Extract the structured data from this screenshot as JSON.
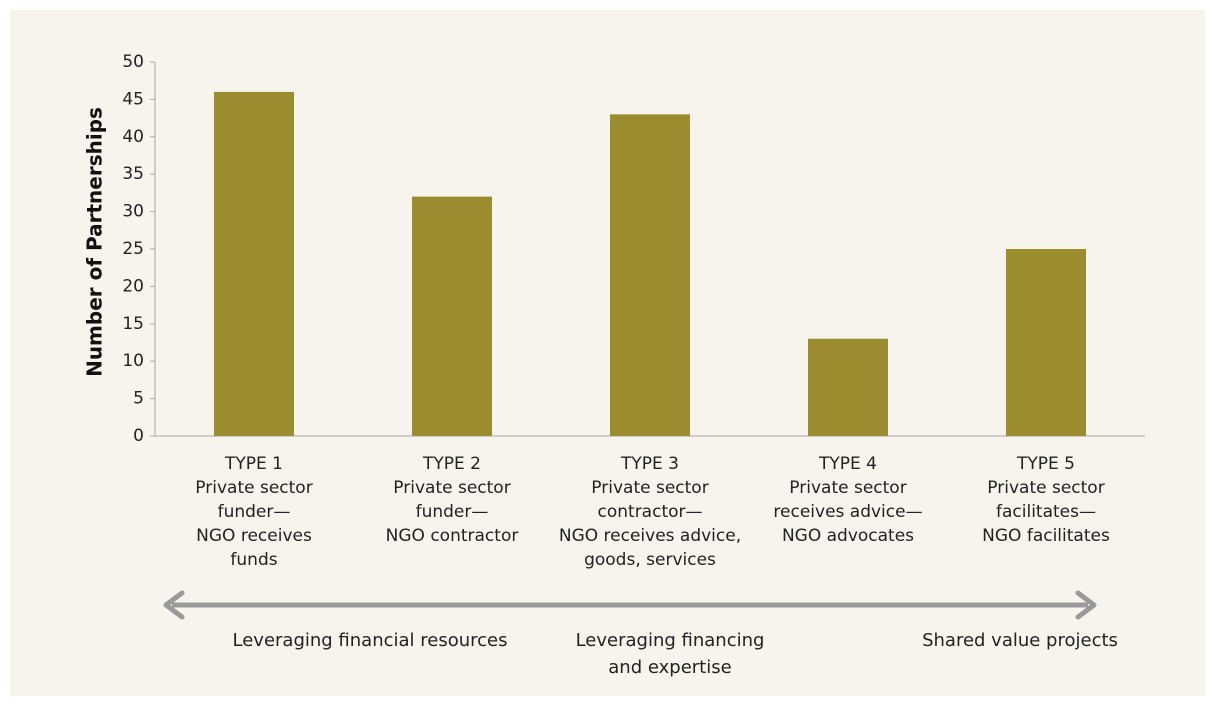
{
  "chart_data": {
    "type": "bar",
    "ylabel": "Number of Partnerships",
    "categories": [
      [
        "TYPE 1",
        "Private sector",
        "funder—",
        "NGO receives",
        "funds"
      ],
      [
        "TYPE 2",
        "Private sector",
        "funder—",
        "NGO contractor"
      ],
      [
        "TYPE 3",
        "Private sector",
        "contractor—",
        "NGO receives advice,",
        "goods, services"
      ],
      [
        "TYPE 4",
        "Private sector",
        "receives advice—",
        "NGO advocates"
      ],
      [
        "TYPE 5",
        "Private sector",
        "facilitates—",
        "NGO facilitates"
      ]
    ],
    "values": [
      46,
      32,
      43,
      13,
      25
    ],
    "color": "#9b8c2f",
    "ylim": [
      0,
      50
    ],
    "yticks": [
      0,
      5,
      10,
      15,
      20,
      25,
      30,
      35,
      40,
      45,
      50
    ],
    "annotations": [
      [
        "Leveraging financial resources"
      ],
      [
        "Leveraging financing",
        "and expertise"
      ],
      [
        "Shared value projects"
      ]
    ]
  }
}
